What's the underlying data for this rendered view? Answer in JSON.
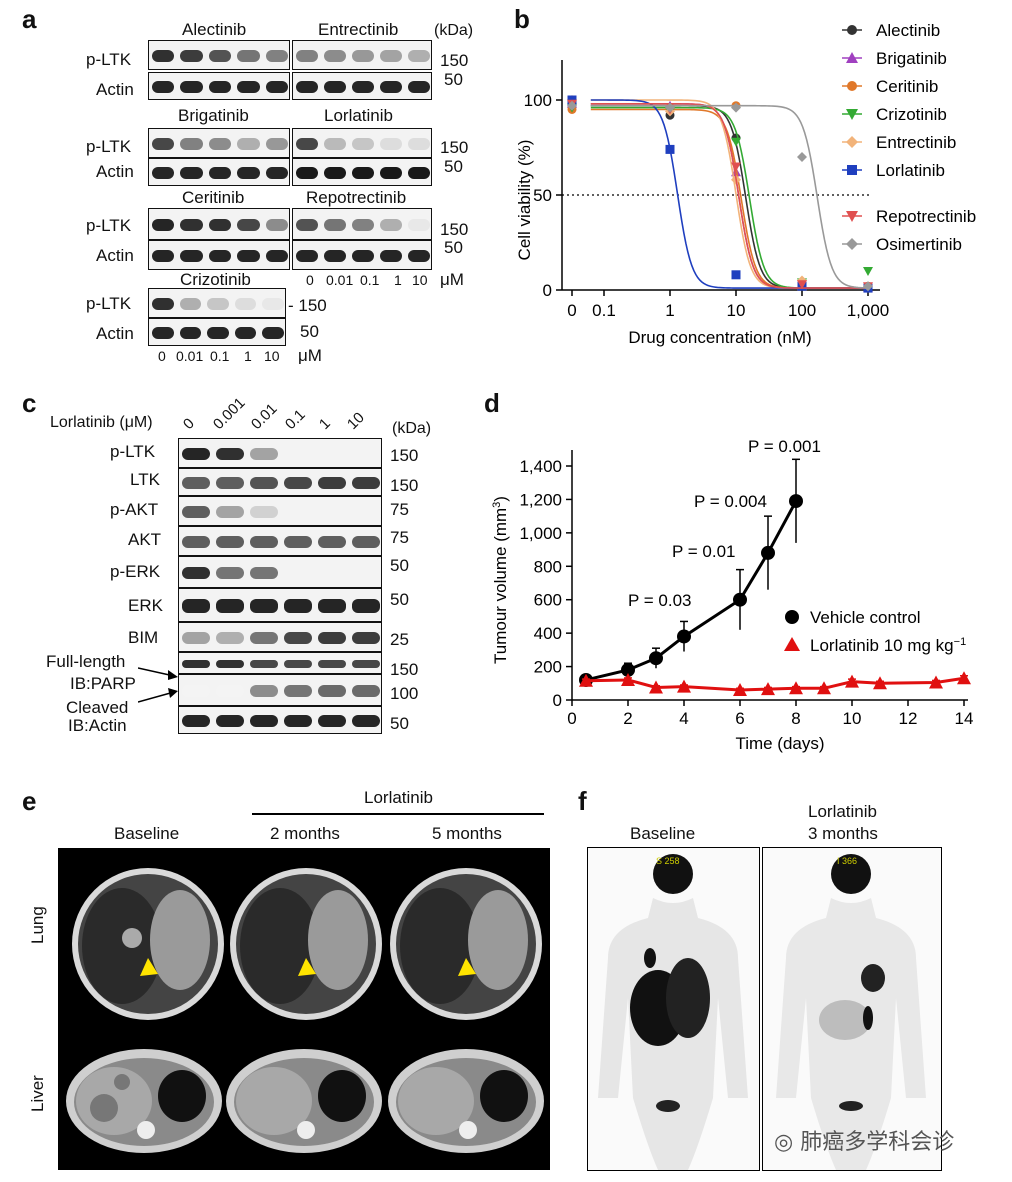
{
  "panels": {
    "a": "a",
    "b": "b",
    "c": "c",
    "d": "d",
    "e": "e",
    "f": "f"
  },
  "panel_a": {
    "kda": "(kDa)",
    "drugs": [
      "Alectinib",
      "Entrectinib",
      "Brigatinib",
      "Lorlatinib",
      "Ceritinib",
      "Repotrectinib",
      "Crizotinib"
    ],
    "row_p": "p-LTK",
    "row_actin": "Actin",
    "mw150": "150",
    "mw50": "50",
    "mw_crizo150": "- 150",
    "mw_crizo50": "50",
    "conc": [
      "0",
      "0.01",
      "0.1",
      "1",
      "10"
    ],
    "um": "μM"
  },
  "panel_b": {
    "ylabel": "Cell viability (%)",
    "xlabel": "Drug concentration (nM)",
    "legend": [
      "Alectinib",
      "Brigatinib",
      "Ceritinib",
      "Crizotinib",
      "Entrectinib",
      "Lorlatinib",
      "Repotrectinib",
      "Osimertinib"
    ]
  },
  "panel_c": {
    "treat": "Lorlatinib (μM)",
    "conc": [
      "0",
      "0.001",
      "0.01",
      "0.1",
      "1",
      "10"
    ],
    "kda": "(kDa)",
    "rows": [
      "p-LTK",
      "LTK",
      "p-AKT",
      "AKT",
      "p-ERK",
      "ERK",
      "BIM",
      "Full-length",
      "IB:PARP",
      "Cleaved",
      "IB:Actin"
    ],
    "mw": [
      "150",
      "150",
      "75",
      "75",
      "50",
      "50",
      "25",
      "150",
      "100",
      "50"
    ]
  },
  "panel_d": {
    "pvals": [
      "P = 0.03",
      "P = 0.01",
      "P = 0.004",
      "P = 0.001"
    ],
    "legend_vehicle": "Vehicle control",
    "legend_lorla": "Lorlatinib 10 mg kg",
    "legend_sup": "−1"
  },
  "panel_e": {
    "lorla": "Lorlatinib",
    "cols": [
      "Baseline",
      "2 months",
      "5 months"
    ],
    "rows": [
      "Lung",
      "Liver"
    ]
  },
  "panel_f": {
    "col1": "Baseline",
    "col2a": "Lorlatinib",
    "col2b": "3 months",
    "tag1": "S 258",
    "tag2": "I 366"
  },
  "watermark": "肺癌多学科会诊",
  "chart_data": [
    {
      "type": "line",
      "panel": "b",
      "xlabel": "Drug concentration (nM)",
      "ylabel": "Cell viability (%)",
      "xscale": "log",
      "x_ticks": [
        "0",
        "0.1",
        "1",
        "10",
        "100",
        "1,000"
      ],
      "y_ticks": [
        0,
        50,
        100
      ],
      "ylim": [
        0,
        120
      ],
      "reference_line": 50,
      "series": [
        {
          "name": "Alectinib",
          "color": "#333333",
          "marker": "circle",
          "ic50": 14,
          "x": [
            0,
            1,
            10,
            100,
            1000
          ],
          "y": [
            97,
            92,
            80,
            2,
            1
          ]
        },
        {
          "name": "Brigatinib",
          "color": "#a040c0",
          "marker": "triangle-up",
          "ic50": 11,
          "x": [
            0,
            1,
            10,
            100,
            1000
          ],
          "y": [
            98,
            97,
            62,
            2,
            1
          ]
        },
        {
          "name": "Ceritinib",
          "color": "#e0782a",
          "marker": "circle",
          "ic50": 12,
          "x": [
            0,
            1,
            10,
            100,
            1000
          ],
          "y": [
            95,
            96,
            97,
            3,
            2
          ]
        },
        {
          "name": "Crizotinib",
          "color": "#33aa33",
          "marker": "triangle-down",
          "ic50": 16,
          "x": [
            0,
            1,
            10,
            100,
            1000
          ],
          "y": [
            96,
            94,
            78,
            4,
            10
          ]
        },
        {
          "name": "Entrectinib",
          "color": "#f2b37a",
          "marker": "diamond",
          "ic50": 10,
          "x": [
            0,
            1,
            10,
            100,
            1000
          ],
          "y": [
            100,
            94,
            58,
            5,
            2
          ]
        },
        {
          "name": "Lorlatinib",
          "color": "#1f3fbf",
          "marker": "square",
          "ic50": 1.3,
          "x": [
            0,
            1,
            10,
            100,
            1000
          ],
          "y": [
            100,
            74,
            8,
            2,
            1
          ]
        },
        {
          "name": "Repotrectinib",
          "color": "#e05050",
          "marker": "triangle-down",
          "ic50": 11,
          "x": [
            0,
            1,
            10,
            100,
            1000
          ],
          "y": [
            98,
            95,
            65,
            3,
            2
          ]
        },
        {
          "name": "Osimertinib",
          "color": "#999999",
          "marker": "diamond",
          "ic50": 170,
          "x": [
            0,
            1,
            10,
            100,
            1000
          ],
          "y": [
            97,
            96,
            96,
            70,
            2
          ]
        }
      ]
    },
    {
      "type": "line",
      "panel": "d",
      "xlabel": "Time (days)",
      "ylabel": "Tumour volume (mm³)",
      "x_ticks": [
        0,
        2,
        4,
        6,
        8,
        10,
        12,
        14
      ],
      "y_ticks": [
        "0",
        "200",
        "400",
        "600",
        "800",
        "1,000",
        "1,200",
        "1,400"
      ],
      "xlim": [
        0,
        14
      ],
      "ylim": [
        0,
        1450
      ],
      "series": [
        {
          "name": "Vehicle control",
          "color": "#000000",
          "marker": "circle",
          "x": [
            0.5,
            2,
            3,
            4,
            6,
            7,
            8
          ],
          "y": [
            120,
            180,
            250,
            380,
            600,
            880,
            1190
          ],
          "err": [
            25,
            40,
            60,
            90,
            180,
            220,
            250
          ]
        },
        {
          "name": "Lorlatinib 10 mg kg−1",
          "color": "#e01010",
          "marker": "triangle-up",
          "x": [
            0.5,
            2,
            3,
            4,
            6,
            7,
            8,
            9,
            10,
            11,
            13,
            14
          ],
          "y": [
            115,
            120,
            75,
            80,
            60,
            65,
            70,
            70,
            110,
            100,
            105,
            130
          ],
          "err": [
            10,
            12,
            10,
            10,
            10,
            10,
            10,
            10,
            15,
            12,
            12,
            15
          ]
        }
      ]
    }
  ]
}
